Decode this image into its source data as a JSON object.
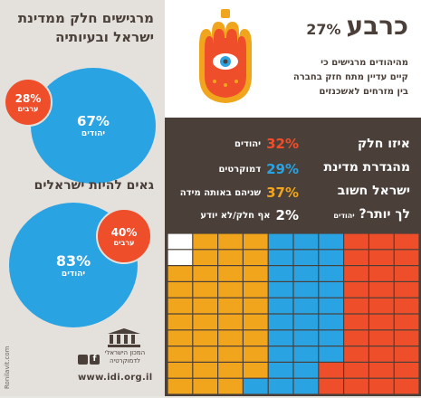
{
  "left": {
    "q1": {
      "title_line1": "מרגישים חלק ממדינת",
      "title_line2": "ישראל ובעיותיה",
      "jews_pct": "67%",
      "jews_label": "יהודים",
      "arabs_pct": "28%",
      "arabs_label": "ערבים"
    },
    "q2": {
      "title": "גאים להיות ישראלים",
      "jews_pct": "83%",
      "jews_label": "יהודים",
      "arabs_pct": "40%",
      "arabs_label": "ערבים"
    },
    "logo": {
      "line1": "המכון הישראלי",
      "line2": "לדמוקרטיה",
      "url": "www.idi.org.il",
      "credit": "Ronilavit.com"
    }
  },
  "right": {
    "quarter": {
      "big": "כרבע",
      "pct": "27%",
      "line1": "מהיהודים מרגישים כי",
      "line2": "קיים עדיין מתח חזק בחברה",
      "line3": "בין מזרחים לאשכנזים"
    },
    "q3": {
      "title_line1": "איזו חלק",
      "title_line2": "מהגדרת מדינת",
      "title_line3": "ישראל חשוב",
      "title_line4": "לך יותר?",
      "title_suffix": "יהודים",
      "rows": [
        {
          "pct": "32%",
          "label": "יהודים",
          "color": "#ef4e2b"
        },
        {
          "pct": "29%",
          "label": "דמוקרטים",
          "color": "#2aa3e3"
        },
        {
          "pct": "37%",
          "label": "שניהם באותה מידה",
          "color": "#f0a51c"
        },
        {
          "pct": "2%",
          "label": "אף חלק/לא יודע",
          "color": "#ffffff"
        }
      ]
    }
  },
  "waffle": {
    "colors": {
      "jewish": "#ef4e2b",
      "democratic": "#2aa3e3",
      "both": "#f0a51c",
      "none": "#ffffff"
    },
    "values": {
      "jewish": 32,
      "democratic": 29,
      "both": 37,
      "none": 2
    }
  }
}
